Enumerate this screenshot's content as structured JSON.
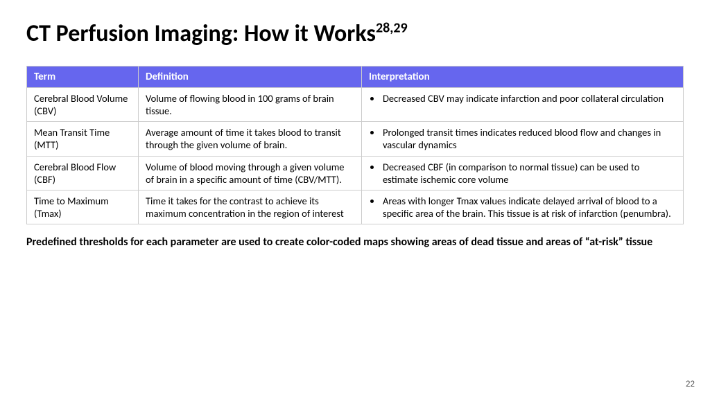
{
  "title": "CT Perfusion Imaging: How it Works",
  "title_super": "28,29",
  "columns": [
    "Term",
    "Definition",
    "Interpretation"
  ],
  "rows": [
    {
      "term": "Cerebral Blood Volume (CBV)",
      "definition": "Volume of flowing blood in 100 grams of brain tissue.",
      "interpretation": "Decreased CBV may indicate infarction and poor collateral circulation"
    },
    {
      "term": "Mean Transit Time (MTT)",
      "definition": "Average amount of time it takes blood to transit through the given volume of brain.",
      "interpretation": "Prolonged transit times indicates reduced blood flow and changes in vascular dynamics"
    },
    {
      "term": "Cerebral Blood Flow (CBF)",
      "definition": "Volume of blood moving through a given volume of brain in a specific amount of time (CBV/MTT).",
      "interpretation": "Decreased CBF (in comparison to normal tissue) can be used to estimate ischemic core volume"
    },
    {
      "term": "Time to Maximum (Tmax)",
      "definition": "Time it takes for the contrast to achieve its maximum concentration in the region of interest",
      "interpretation": "Areas with longer Tmax values indicate delayed arrival of blood to a specific area of the brain.  This tissue is at risk of infarction (penumbra)."
    }
  ],
  "footnote": "Predefined thresholds for each parameter are used to create color-coded maps showing areas of dead tissue and areas of “at-risk” tissue",
  "page_number": "22",
  "header_bg": "#6666ee",
  "header_fg": "#ffffff",
  "border_color": "#cccccc"
}
